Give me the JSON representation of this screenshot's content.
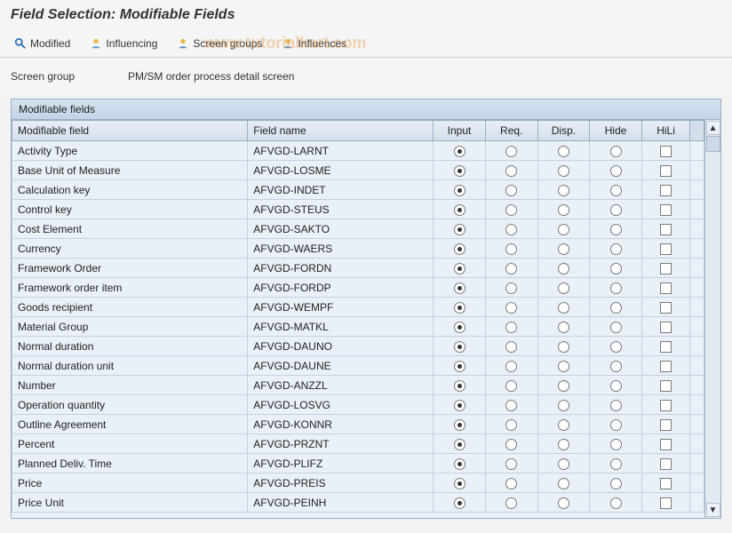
{
  "title": "Field Selection: Modifiable Fields",
  "watermark": "www.tutorialkart.com",
  "toolbar": {
    "modified": "Modified",
    "influencing": "Influencing",
    "screen_groups": "Screen groups",
    "influences": "Influences"
  },
  "context": {
    "label": "Screen group",
    "value": "PM/SM order process detail screen"
  },
  "panel": {
    "title": "Modifiable fields"
  },
  "columns": {
    "label": "Modifiable field",
    "name": "Field name",
    "input": "Input",
    "req": "Req.",
    "disp": "Disp.",
    "hide": "Hide",
    "hili": "HiLi"
  },
  "colors": {
    "panel_border": "#9aafc5",
    "header_grad_top": "#e8eef6",
    "header_grad_bottom": "#d4deeb",
    "row_bg": "#eaf0f7",
    "cell_border": "#c5d0de"
  },
  "rows": [
    {
      "label": "Activity Type",
      "name": "AFVGD-LARNT",
      "selected": "input",
      "hili": false
    },
    {
      "label": "Base Unit of Measure",
      "name": "AFVGD-LOSME",
      "selected": "input",
      "hili": false
    },
    {
      "label": "Calculation key",
      "name": "AFVGD-INDET",
      "selected": "input",
      "hili": false
    },
    {
      "label": "Control key",
      "name": "AFVGD-STEUS",
      "selected": "input",
      "hili": false
    },
    {
      "label": "Cost Element",
      "name": "AFVGD-SAKTO",
      "selected": "input",
      "hili": false
    },
    {
      "label": "Currency",
      "name": "AFVGD-WAERS",
      "selected": "input",
      "hili": false
    },
    {
      "label": "Framework Order",
      "name": "AFVGD-FORDN",
      "selected": "input",
      "hili": false
    },
    {
      "label": "Framework order item",
      "name": "AFVGD-FORDP",
      "selected": "input",
      "hili": false
    },
    {
      "label": "Goods recipient",
      "name": "AFVGD-WEMPF",
      "selected": "input",
      "hili": false
    },
    {
      "label": "Material Group",
      "name": "AFVGD-MATKL",
      "selected": "input",
      "hili": false
    },
    {
      "label": "Normal duration",
      "name": "AFVGD-DAUNO",
      "selected": "input",
      "hili": false
    },
    {
      "label": "Normal duration unit",
      "name": "AFVGD-DAUNE",
      "selected": "input",
      "hili": false
    },
    {
      "label": "Number",
      "name": "AFVGD-ANZZL",
      "selected": "input",
      "hili": false
    },
    {
      "label": "Operation quantity",
      "name": "AFVGD-LOSVG",
      "selected": "input",
      "hili": false
    },
    {
      "label": "Outline Agreement",
      "name": "AFVGD-KONNR",
      "selected": "input",
      "hili": false
    },
    {
      "label": "Percent",
      "name": "AFVGD-PRZNT",
      "selected": "input",
      "hili": false
    },
    {
      "label": "Planned Deliv. Time",
      "name": "AFVGD-PLIFZ",
      "selected": "input",
      "hili": false
    },
    {
      "label": "Price",
      "name": "AFVGD-PREIS",
      "selected": "input",
      "hili": false
    },
    {
      "label": "Price Unit",
      "name": "AFVGD-PEINH",
      "selected": "input",
      "hili": false
    }
  ]
}
